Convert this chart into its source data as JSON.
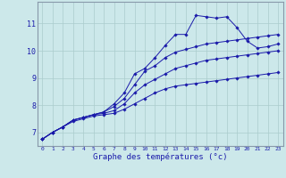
{
  "xlabel": "Graphe des températures (°c)",
  "bg_color": "#cce8ea",
  "grid_color": "#aacccc",
  "line_color": "#1a1aaa",
  "xlim": [
    -0.5,
    23.5
  ],
  "ylim": [
    6.5,
    11.8
  ],
  "xticks": [
    0,
    1,
    2,
    3,
    4,
    5,
    6,
    7,
    8,
    9,
    10,
    11,
    12,
    13,
    14,
    15,
    16,
    17,
    18,
    19,
    20,
    21,
    22,
    23
  ],
  "yticks": [
    7,
    8,
    9,
    10,
    11
  ],
  "series": [
    [
      6.75,
      7.0,
      7.2,
      7.45,
      7.55,
      7.65,
      7.75,
      8.05,
      8.45,
      9.15,
      9.35,
      9.75,
      10.2,
      10.6,
      10.6,
      11.3,
      11.25,
      11.2,
      11.25,
      10.85,
      10.35,
      10.1,
      10.15,
      10.25
    ],
    [
      6.75,
      7.0,
      7.2,
      7.45,
      7.55,
      7.65,
      7.75,
      7.95,
      8.25,
      8.75,
      9.25,
      9.45,
      9.75,
      9.95,
      10.05,
      10.15,
      10.25,
      10.3,
      10.35,
      10.4,
      10.45,
      10.5,
      10.55,
      10.6
    ],
    [
      6.75,
      7.0,
      7.2,
      7.45,
      7.55,
      7.65,
      7.7,
      7.8,
      8.05,
      8.45,
      8.75,
      8.95,
      9.15,
      9.35,
      9.45,
      9.55,
      9.65,
      9.7,
      9.75,
      9.8,
      9.85,
      9.9,
      9.95,
      10.0
    ],
    [
      6.75,
      7.0,
      7.2,
      7.4,
      7.5,
      7.6,
      7.65,
      7.7,
      7.85,
      8.05,
      8.25,
      8.45,
      8.6,
      8.7,
      8.75,
      8.8,
      8.85,
      8.9,
      8.95,
      9.0,
      9.05,
      9.1,
      9.15,
      9.2
    ]
  ]
}
